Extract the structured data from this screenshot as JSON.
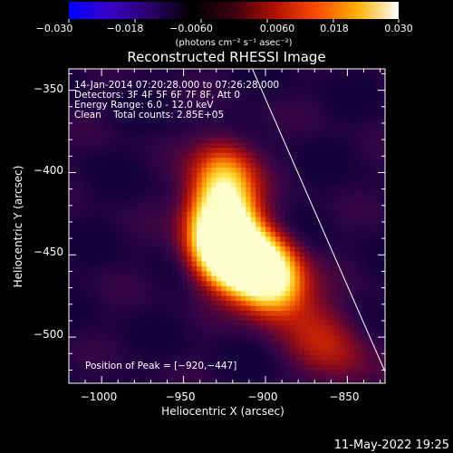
{
  "colorbar": {
    "ticks": [
      "−0.030",
      "−0.018",
      "−0.0060",
      "0.0060",
      "0.018",
      "0.030"
    ],
    "unit_label": "(photons cm⁻² s⁻¹ asec⁻²)",
    "colors": [
      "#0000ff",
      "#3a00c8",
      "#2a0066",
      "#000000",
      "#3c0010",
      "#b01000",
      "#ff4a00",
      "#ffb000",
      "#ffffff"
    ]
  },
  "chart_data": {
    "type": "heatmap",
    "title": "Reconstructed RHESSI Image",
    "xlabel": "Heliocentric X (arcsec)",
    "ylabel": "Heliocentric Y (arcsec)",
    "xlim": [
      -1020,
      -827
    ],
    "ylim": [
      -528,
      -337
    ],
    "x_ticks": [
      -1000,
      -950,
      -900,
      -850
    ],
    "y_ticks": [
      -350,
      -400,
      -450,
      -500
    ],
    "x_tick_labels": [
      "−1000",
      "−950",
      "−900",
      "−850"
    ],
    "y_tick_labels": [
      "−350",
      "−400",
      "−450",
      "−500"
    ],
    "annotations": [
      "14-Jan-2014 07:20:28.000 to 07:26:28.000",
      "Detectors: 3F 4F 5F 6F 7F 8F, Att 0",
      "Energy Range: 6.0 - 12.0 keV",
      "Clean    Total counts: 2.85E+05"
    ],
    "peak_label": "Position of Peak = [−920,−447]",
    "peak": {
      "x": -920,
      "y": -447
    },
    "limb": [
      {
        "x": -908,
        "y": -337
      },
      {
        "x": -827,
        "y": -521
      }
    ],
    "source_spine": [
      {
        "x": -927,
        "y": -395,
        "v": 0.35
      },
      {
        "x": -927,
        "y": -410,
        "v": 0.5
      },
      {
        "x": -928,
        "y": -425,
        "v": 0.64
      },
      {
        "x": -928,
        "y": -437,
        "v": 0.76
      },
      {
        "x": -925,
        "y": -447,
        "v": 0.86
      },
      {
        "x": -915,
        "y": -452,
        "v": 0.8
      },
      {
        "x": -905,
        "y": -457,
        "v": 0.64
      },
      {
        "x": -898,
        "y": -462,
        "v": 0.46
      },
      {
        "x": -895,
        "y": -470,
        "v": 0.3
      }
    ],
    "faint_tail": [
      {
        "x": -885,
        "y": -480,
        "v": 0.12
      },
      {
        "x": -870,
        "y": -495,
        "v": 0.15
      },
      {
        "x": -862,
        "y": -506,
        "v": 0.14
      },
      {
        "x": -850,
        "y": -516,
        "v": 0.1
      }
    ]
  },
  "footer": {
    "timestamp": "11-May-2022 19:25"
  }
}
